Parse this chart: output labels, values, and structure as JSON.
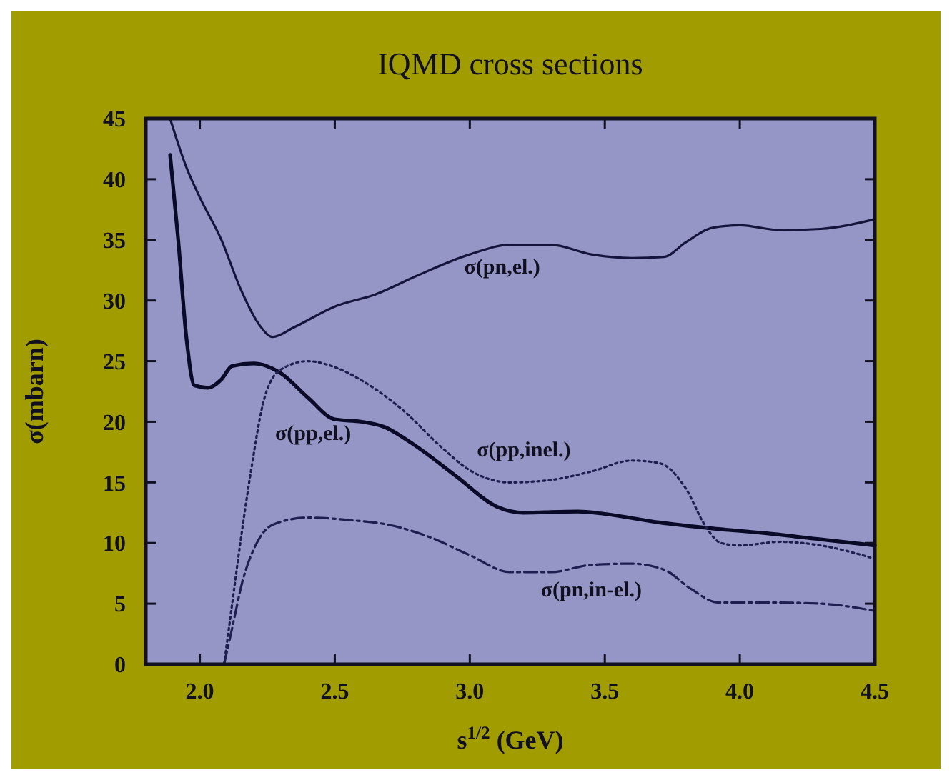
{
  "chart_data": {
    "type": "line",
    "title": "IQMD cross sections",
    "xlabel": "s$^{1/2}$ (GeV)",
    "ylabel": "σ(mbarn)",
    "xlim": [
      1.8,
      4.5
    ],
    "xticks": [
      {
        "value": 2,
        "label": "2.0"
      },
      2.5,
      {
        "value": 3,
        "label": "3.0"
      },
      3.5,
      {
        "value": 4,
        "label": "4.0"
      },
      4.5
    ],
    "ylim": [
      0,
      45
    ],
    "yticks": [
      0,
      5,
      10,
      15,
      20,
      25,
      30,
      35,
      40,
      45
    ],
    "grid": false,
    "marker": "none",
    "series": [
      {
        "name": "σ(pn,el.)",
        "color": "#14143c",
        "line_style": "solid",
        "x": [
          1.89,
          1.95,
          2.0,
          2.08,
          2.15,
          2.22,
          2.27,
          2.35,
          2.5,
          2.65,
          2.8,
          3.0,
          3.15,
          3.3,
          3.45,
          3.6,
          3.72,
          3.8,
          3.9,
          4.0,
          4.15,
          4.3,
          4.5
        ],
        "values": [
          45,
          41,
          38.5,
          35,
          31,
          28,
          27,
          27.8,
          29.5,
          30.5,
          32,
          33.8,
          34.6,
          34.6,
          33.8,
          33.5,
          33.6,
          34.8,
          36,
          36.2,
          35.8,
          35.9,
          36.7
        ]
      },
      {
        "name": "σ(pp,el.)",
        "color": "#0a0a28",
        "line_style": "solid",
        "x": [
          1.89,
          1.92,
          1.95,
          1.98,
          2.03,
          2.08,
          2.12,
          2.2,
          2.3,
          2.4,
          2.5,
          2.6,
          2.68,
          2.8,
          2.95,
          3.1,
          3.2,
          3.4,
          3.5,
          3.7,
          3.9,
          4.1,
          4.3,
          4.5
        ],
        "values": [
          42,
          35,
          27,
          23,
          22.8,
          23.5,
          24.6,
          24.8,
          24,
          22,
          20.2,
          20,
          19.6,
          18,
          15.5,
          13,
          12.5,
          12.6,
          12.4,
          11.7,
          11.2,
          10.8,
          10.3,
          9.8
        ]
      },
      {
        "name": "σ(pp,inel.)",
        "color": "#1e1e50",
        "line_style": "dotted",
        "x": [
          2.09,
          2.12,
          2.15,
          2.19,
          2.24,
          2.3,
          2.4,
          2.5,
          2.6,
          2.75,
          2.9,
          3.0,
          3.15,
          3.3,
          3.45,
          3.6,
          3.7,
          3.8,
          3.87,
          3.93,
          4.0,
          4.15,
          4.3,
          4.5
        ],
        "values": [
          0,
          5,
          10,
          16,
          22,
          24.3,
          25,
          24.5,
          23.4,
          21,
          17.8,
          16,
          15,
          15.2,
          15.9,
          16.8,
          16.6,
          14.5,
          11.5,
          10,
          9.8,
          10.1,
          9.8,
          8.7
        ]
      },
      {
        "name": "σ(pn,in-el.)",
        "color": "#1e1e50",
        "line_style": "dashed",
        "x": [
          2.09,
          2.12,
          2.16,
          2.2,
          2.27,
          2.4,
          2.55,
          2.7,
          2.85,
          3.0,
          3.15,
          3.3,
          3.45,
          3.6,
          3.72,
          3.82,
          3.92,
          4.1,
          4.3,
          4.5
        ],
        "values": [
          0,
          3,
          7,
          9.5,
          11.5,
          12.1,
          11.9,
          11.5,
          10.5,
          9,
          7.6,
          7.6,
          8.2,
          8.3,
          7.8,
          6.2,
          5.1,
          5.1,
          5,
          4.4
        ]
      }
    ]
  }
}
